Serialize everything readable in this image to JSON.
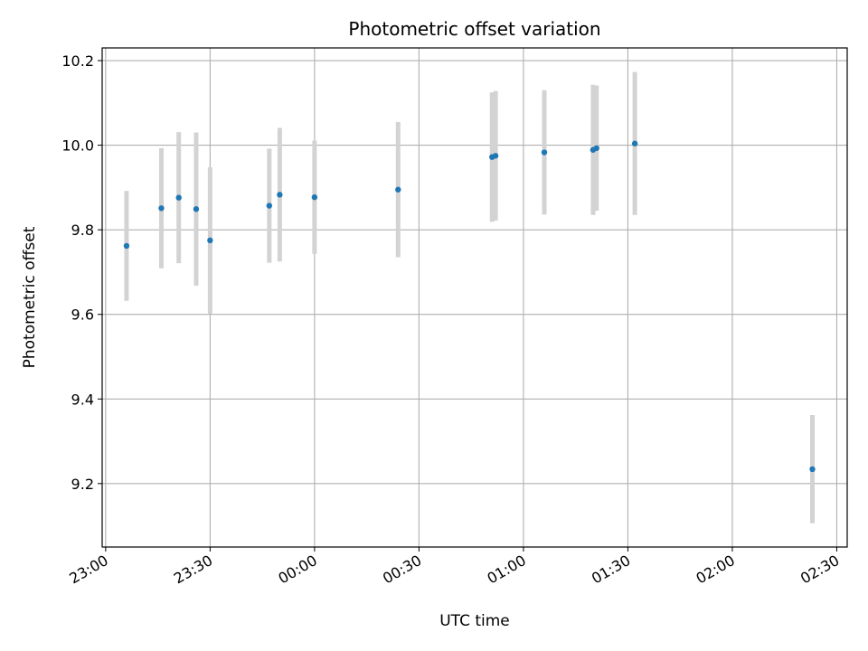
{
  "chart_data": {
    "type": "scatter",
    "title": "Photometric offset variation",
    "xlabel": "UTC time",
    "ylabel": "Photometric offset",
    "xlim": [
      "22:59",
      "02:33"
    ],
    "ylim": [
      9.05,
      10.23
    ],
    "x_ticks": [
      "23:00",
      "23:30",
      "00:00",
      "00:30",
      "01:00",
      "01:30",
      "02:00",
      "02:30"
    ],
    "y_ticks": [
      "9.2",
      "9.4",
      "9.6",
      "9.8",
      "10.0",
      "10.2"
    ],
    "grid": true,
    "errorbar_color": "#d3d3d3",
    "point_color": "#1f77b4",
    "points": [
      {
        "x": "23:06",
        "y": 9.762,
        "err": 0.13
      },
      {
        "x": "23:16",
        "y": 9.851,
        "err": 0.142
      },
      {
        "x": "23:21",
        "y": 9.876,
        "err": 0.155
      },
      {
        "x": "23:26",
        "y": 9.849,
        "err": 0.181
      },
      {
        "x": "23:30",
        "y": 9.775,
        "err": 0.173
      },
      {
        "x": "23:47",
        "y": 9.857,
        "err": 0.135
      },
      {
        "x": "23:50",
        "y": 9.883,
        "err": 0.158
      },
      {
        "x": "00:00",
        "y": 9.877,
        "err": 0.134
      },
      {
        "x": "00:24",
        "y": 9.895,
        "err": 0.16
      },
      {
        "x": "00:51",
        "y": 9.972,
        "err": 0.153
      },
      {
        "x": "00:52",
        "y": 9.975,
        "err": 0.153
      },
      {
        "x": "01:06",
        "y": 9.983,
        "err": 0.147
      },
      {
        "x": "01:20",
        "y": 9.989,
        "err": 0.154
      },
      {
        "x": "01:21",
        "y": 9.993,
        "err": 0.148
      },
      {
        "x": "01:32",
        "y": 10.004,
        "err": 0.169
      },
      {
        "x": "02:23",
        "y": 9.234,
        "err": 0.128
      }
    ]
  }
}
